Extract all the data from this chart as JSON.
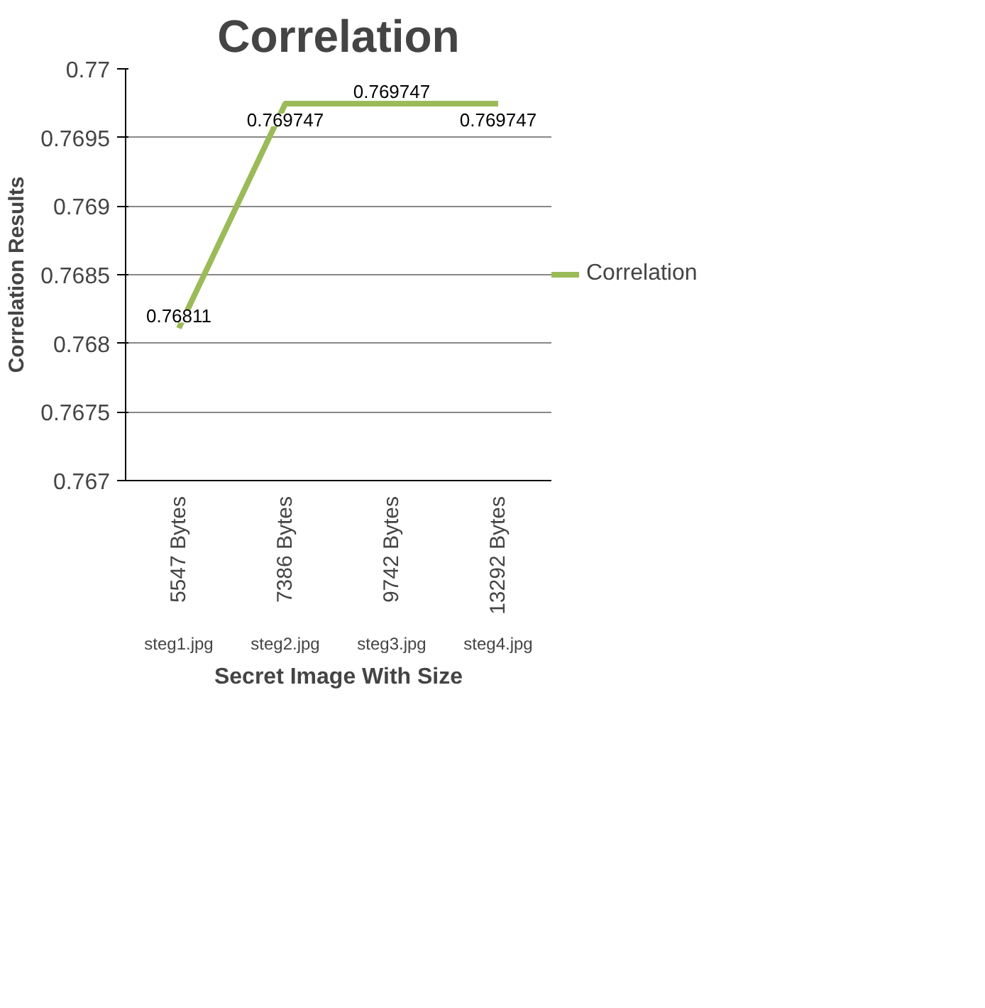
{
  "chart_data": {
    "type": "line",
    "title": "Correlation",
    "xlabel": "Secret Image With Size",
    "ylabel": "Correlation Results",
    "categories": [
      "5547 Bytes",
      "7386 Bytes",
      "9742 Bytes",
      "13292 Bytes"
    ],
    "series": [
      {
        "name": "Correlation",
        "color": "#9bbb59",
        "values": [
          0.76811,
          0.769747,
          0.769747,
          0.769747
        ]
      }
    ],
    "annotations": [
      "steg1.jpg",
      "steg2.jpg",
      "steg3.jpg",
      "steg4.jpg"
    ],
    "ylim": [
      0.767,
      0.77
    ],
    "yticks": [
      0.767,
      0.7675,
      0.768,
      0.7685,
      0.769,
      0.7695,
      0.77
    ],
    "grid": "y",
    "legend": "right",
    "data_labels": true,
    "marker": "none",
    "line_style": "solid"
  }
}
